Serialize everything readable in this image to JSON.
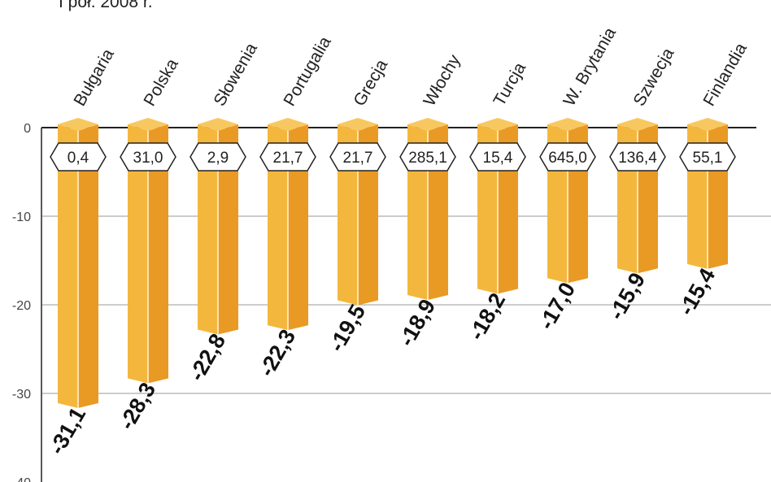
{
  "chart_data": {
    "type": "bar",
    "title": "I poł. 2008 r.",
    "categories": [
      "Bułgaria",
      "Polska",
      "Słowenia",
      "Portugalia",
      "Grecja",
      "Włochy",
      "Turcja",
      "W. Brytania",
      "Szwecja",
      "Finlandia"
    ],
    "values": [
      -31.1,
      -28.3,
      -22.8,
      -22.3,
      -19.5,
      -18.9,
      -18.2,
      -17.0,
      -15.9,
      -15.4
    ],
    "value_labels": [
      "-31,1",
      "-28,3",
      "-22,8",
      "-22,3",
      "-19,5",
      "-18,9",
      "-18,2",
      "-17,0",
      "-15,9",
      "-15,4"
    ],
    "secondary_labels": [
      "0,4",
      "31,0",
      "2,9",
      "21,7",
      "21,7",
      "285,1",
      "15,4",
      "645,0",
      "136,4",
      "55,1"
    ],
    "yticks": [
      0,
      -10,
      -20,
      -30,
      -40
    ],
    "ytick_labels": [
      "0",
      "-10",
      "-20",
      "-30",
      "-40"
    ],
    "ylim": [
      -40,
      0
    ],
    "grid": true,
    "xlabel": "",
    "ylabel": "",
    "colors": {
      "bar_light": "#f4b73e",
      "bar_dark": "#e99a24",
      "cap": "#f8c860",
      "grid": "#bbbbbb",
      "axis": "#222222"
    }
  }
}
